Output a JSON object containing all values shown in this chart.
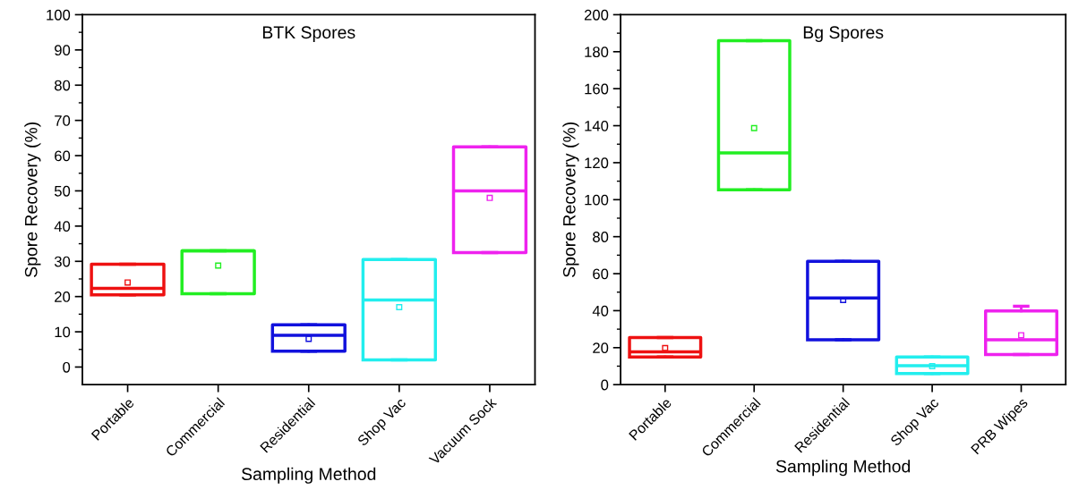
{
  "chart_data": [
    {
      "type": "box",
      "title": "BTK Spores",
      "xlabel": "Sampling Method",
      "ylabel": "Spore Recovery (%)",
      "categories": [
        "Portable",
        "Commercial",
        "Residential",
        "Shop Vac",
        "Vacuum Sock"
      ],
      "colors": [
        "#ee1111",
        "#22ee22",
        "#1111dd",
        "#22eeee",
        "#ee22ee"
      ],
      "boxes": [
        {
          "low": 20.5,
          "q1": 20.5,
          "median": 22.3,
          "q3": 29.2,
          "high": 29.2,
          "mean": 24
        },
        {
          "low": 20.8,
          "q1": 20.8,
          "median": 33,
          "q3": 33,
          "high": 33,
          "mean": 28.8
        },
        {
          "low": 4.5,
          "q1": 4.5,
          "median": 9,
          "q3": 12,
          "high": 12,
          "mean": 8
        },
        {
          "low": 2,
          "q1": 2,
          "median": 19,
          "q3": 30.5,
          "high": 30.5,
          "mean": 17
        },
        {
          "low": 32.5,
          "q1": 32.5,
          "median": 50,
          "q3": 62.5,
          "high": 62.5,
          "mean": 48
        }
      ],
      "ylim": [
        -5,
        100
      ],
      "yticks": [
        0,
        10,
        20,
        30,
        40,
        50,
        60,
        70,
        80,
        90,
        100
      ],
      "grid": false,
      "legend": false
    },
    {
      "type": "box",
      "title": "Bg Spores",
      "xlabel": "Sampling Method",
      "ylabel": "Spore Recovery (%)",
      "categories": [
        "Portable",
        "Commercial",
        "Residential",
        "Shop Vac",
        "PRB Wipes"
      ],
      "colors": [
        "#ee1111",
        "#22ee22",
        "#1111dd",
        "#22eeee",
        "#ee22ee"
      ],
      "boxes": [
        {
          "low": 15,
          "q1": 15,
          "median": 17.7,
          "q3": 25.5,
          "high": 25.5,
          "mean": 19.8
        },
        {
          "low": 105.4,
          "q1": 105.4,
          "median": 125.3,
          "q3": 186,
          "high": 186,
          "mean": 138.7
        },
        {
          "low": 24.3,
          "q1": 24.3,
          "median": 46.9,
          "q3": 66.7,
          "high": 66.7,
          "mean": 45.8
        },
        {
          "low": 6,
          "q1": 6,
          "median": 10.2,
          "q3": 15,
          "high": 15,
          "mean": 10
        },
        {
          "low": 16.3,
          "q1": 16.3,
          "median": 24.3,
          "q3": 39.8,
          "high": 42.4,
          "mean": 26.7
        }
      ],
      "ylim": [
        0,
        200
      ],
      "yticks": [
        0,
        20,
        40,
        60,
        80,
        100,
        120,
        140,
        160,
        180,
        200
      ],
      "grid": false,
      "legend": false
    }
  ]
}
